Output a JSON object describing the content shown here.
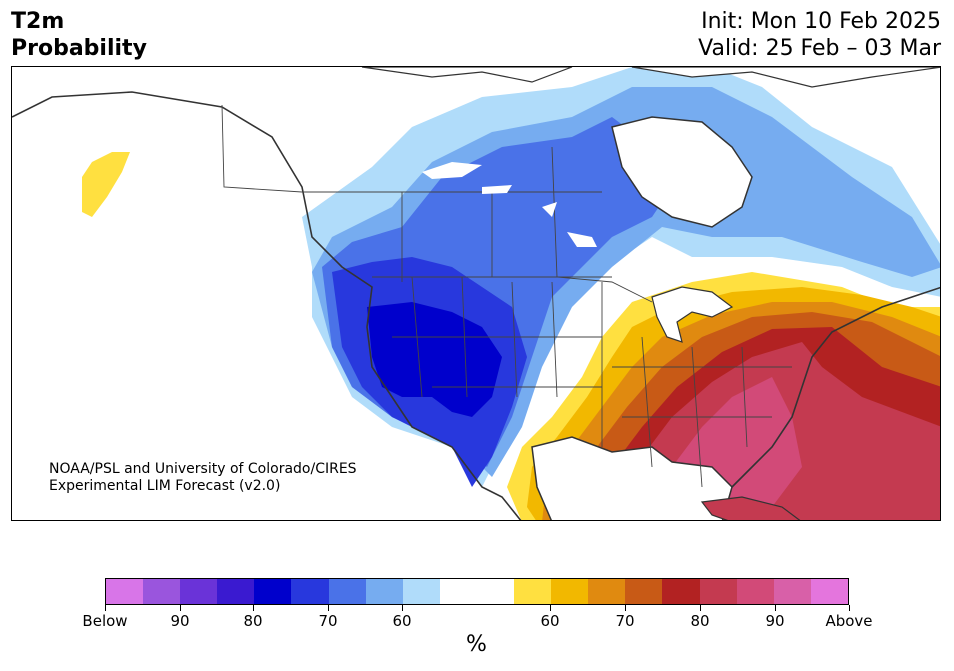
{
  "title": {
    "line1": "T2m",
    "line2": "Probability"
  },
  "dates": {
    "init": "Init: Mon 10 Feb 2025",
    "valid": "Valid: 25 Feb – 03 Mar"
  },
  "credits": {
    "line1": "NOAA/PSL and University of Colorado/CIRES",
    "line2": "Experimental LIM Forecast (v2.0)"
  },
  "colorbar": {
    "unit": "%",
    "tick_labels": [
      "Below",
      "90",
      "80",
      "70",
      "60",
      "60",
      "70",
      "80",
      "90",
      "Above"
    ],
    "colors": [
      "#d875e8",
      "#9a55dd",
      "#6a33d8",
      "#3a1ad0",
      "#0000cc",
      "#2838dd",
      "#4a72e8",
      "#76acf0",
      "#b0dcfa",
      "#ffffff",
      "#ffffff",
      "#ffe040",
      "#f2b800",
      "#e08a10",
      "#c85a16",
      "#b22222",
      "#c43a50",
      "#d24a78",
      "#d860a8",
      "#e475dd"
    ]
  },
  "map_colors": {
    "cold_strong": "#0000cc",
    "cold_mid": "#2838dd",
    "cold_med": "#4a72e8",
    "cold_light": "#76acf0",
    "cold_pale": "#b0dcfa",
    "warm_light": "#ffe040",
    "warm_gold": "#f2b800",
    "warm_orange": "#e08a10",
    "warm_dark_orange": "#c85a16",
    "warm_red": "#b22222",
    "warm_crimson": "#c43a50",
    "warm_pink": "#d24a78"
  }
}
